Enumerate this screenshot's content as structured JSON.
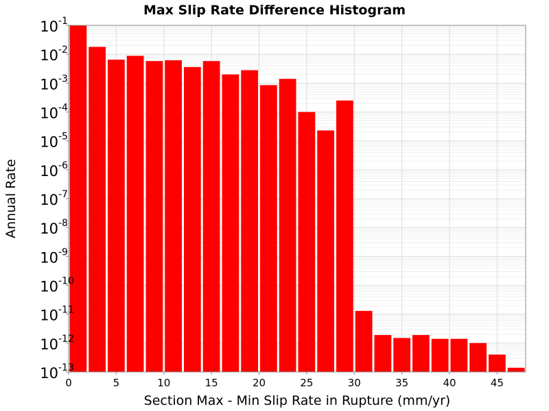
{
  "chart_data": {
    "type": "bar",
    "title": "Max Slip Rate Difference Histogram",
    "xlabel": "Section Max - Min Slip Rate in Rupture (mm/yr)",
    "ylabel": "Annual Rate",
    "y_scale": "log",
    "ylim": [
      1e-13,
      0.1
    ],
    "xlim": [
      0,
      48
    ],
    "grid": true,
    "bar_color": "#ff0000",
    "bin_width": 2,
    "x_ticks": [
      "0",
      "5",
      "10",
      "15",
      "20",
      "25",
      "30",
      "35",
      "40",
      "45"
    ],
    "y_ticks": [
      {
        "base": "10",
        "exp": "-1"
      },
      {
        "base": "10",
        "exp": "-2"
      },
      {
        "base": "10",
        "exp": "-3"
      },
      {
        "base": "10",
        "exp": "-4"
      },
      {
        "base": "10",
        "exp": "-5"
      },
      {
        "base": "10",
        "exp": "-6"
      },
      {
        "base": "10",
        "exp": "-7"
      },
      {
        "base": "10",
        "exp": "-8"
      },
      {
        "base": "10",
        "exp": "-9"
      },
      {
        "base": "10",
        "exp": "-10"
      },
      {
        "base": "10",
        "exp": "-11"
      },
      {
        "base": "10",
        "exp": "-12"
      },
      {
        "base": "10",
        "exp": "-13"
      }
    ],
    "bins": [
      {
        "x": 1,
        "value": 0.1
      },
      {
        "x": 3,
        "value": 0.018
      },
      {
        "x": 5,
        "value": 0.0065
      },
      {
        "x": 7,
        "value": 0.0088
      },
      {
        "x": 9,
        "value": 0.0058
      },
      {
        "x": 11,
        "value": 0.0062
      },
      {
        "x": 13,
        "value": 0.0036
      },
      {
        "x": 15,
        "value": 0.0058
      },
      {
        "x": 17,
        "value": 0.002
      },
      {
        "x": 19,
        "value": 0.0028
      },
      {
        "x": 21,
        "value": 0.00085
      },
      {
        "x": 23,
        "value": 0.0014
      },
      {
        "x": 25,
        "value": 0.0001
      },
      {
        "x": 27,
        "value": 2.3e-05
      },
      {
        "x": 29,
        "value": 0.00025
      },
      {
        "x": 31,
        "value": 1.3e-11
      },
      {
        "x": 33,
        "value": 1.9e-12
      },
      {
        "x": 35,
        "value": 1.5e-12
      },
      {
        "x": 37,
        "value": 1.9e-12
      },
      {
        "x": 39,
        "value": 1.4e-12
      },
      {
        "x": 41,
        "value": 1.4e-12
      },
      {
        "x": 43,
        "value": 1e-12
      },
      {
        "x": 45,
        "value": 4e-13
      },
      {
        "x": 47,
        "value": 1.4e-13
      }
    ]
  }
}
